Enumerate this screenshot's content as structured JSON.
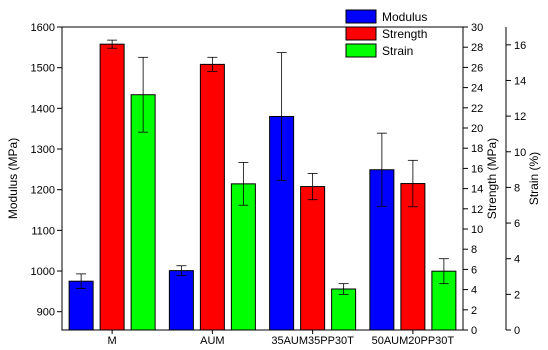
{
  "chart_data": {
    "type": "bar",
    "categories": [
      "M",
      "AUM",
      "35AUM35PP30T",
      "50AUM20PP30T"
    ],
    "series": [
      {
        "name": "Modulus",
        "axis": "left",
        "color": "#0000ff",
        "values": [
          975,
          1001,
          1380,
          1249
        ],
        "errors": [
          18,
          12,
          157,
          90
        ]
      },
      {
        "name": "Strength",
        "axis": "right1",
        "color": "#ff0000",
        "values": [
          28.3,
          26.3,
          14.2,
          14.5
        ],
        "errors": [
          0.4,
          0.7,
          1.3,
          2.3
        ]
      },
      {
        "name": "Strain",
        "axis": "right2",
        "color": "#00ff00",
        "values": [
          13.2,
          8.2,
          2.3,
          3.3
        ],
        "errors": [
          2.1,
          1.2,
          0.3,
          0.7
        ]
      }
    ],
    "axes": {
      "left": {
        "label": "Modulus (MPa)",
        "min": 855,
        "max": 1600,
        "ticks": [
          900,
          1000,
          1100,
          1200,
          1300,
          1400,
          1500,
          1600
        ]
      },
      "right1": {
        "label": "Strength (MPa)",
        "min": 0,
        "max": 30,
        "ticks": [
          0,
          2,
          4,
          6,
          8,
          10,
          12,
          14,
          16,
          18,
          20,
          22,
          24,
          26,
          28,
          30
        ]
      },
      "right2": {
        "label": "Strain (%)",
        "min": 0,
        "max": 17,
        "ticks": [
          0,
          2,
          4,
          6,
          8,
          10,
          12,
          14,
          16
        ]
      }
    },
    "legend": {
      "position": "top-right"
    },
    "grid": false
  }
}
